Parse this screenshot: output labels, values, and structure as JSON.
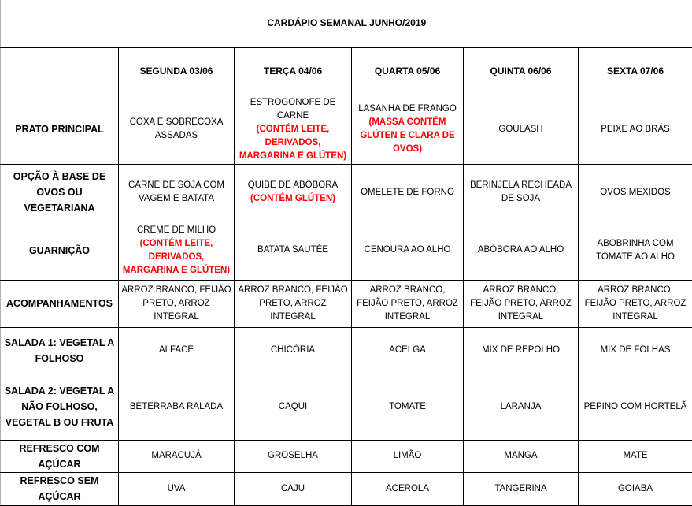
{
  "title": "CARDÁPIO SEMANAL JUNHO/2019",
  "days": [
    "SEGUNDA 03/06",
    "TERÇA 04/06",
    "QUARTA 05/06",
    "QUINTA 06/06",
    "SEXTA 07/06"
  ],
  "rows": [
    {
      "label": "PRATO PRINCIPAL",
      "cells": [
        {
          "text": "COXA E SOBRECOXA ASSADAS"
        },
        {
          "text": "ESTROGONOFE DE CARNE",
          "note": "(CONTÉM LEITE, DERIVADOS, MARGARINA E GLÚTEN)"
        },
        {
          "text": "LASANHA DE FRANGO",
          "note": "(MASSA CONTÉM GLÚTEN E CLARA DE OVOS)"
        },
        {
          "text": "GOULASH"
        },
        {
          "text": "PEIXE AO BRÁS"
        }
      ]
    },
    {
      "label": "OPÇÃO À BASE DE OVOS OU VEGETARIANA",
      "cells": [
        {
          "text": "CARNE DE SOJA COM VAGEM E BATATA"
        },
        {
          "text": "QUIBE DE ABÓBORA",
          "note": "(CONTÉM GLÚTEN)"
        },
        {
          "text": "OMELETE DE FORNO"
        },
        {
          "text": "BERINJELA RECHEADA DE SOJA"
        },
        {
          "text": "OVOS MEXIDOS"
        }
      ]
    },
    {
      "label": "GUARNIÇÃO",
      "cells": [
        {
          "text": "CREME DE MILHO",
          "note": "(CONTÉM LEITE, DERIVADOS, MARGARINA E GLÚTEN)"
        },
        {
          "text": "BATATA SAUTÉE"
        },
        {
          "text": "CENOURA  AO ALHO"
        },
        {
          "text": "ABÓBORA AO ALHO"
        },
        {
          "text": "ABOBRINHA COM TOMATE AO ALHO"
        }
      ]
    },
    {
      "label": "ACOMPANHAMENTOS",
      "cells": [
        {
          "text": "ARROZ BRANCO, FEIJÃO PRETO, ARROZ INTEGRAL"
        },
        {
          "text": "ARROZ BRANCO, FEIJÃO PRETO, ARROZ INTEGRAL"
        },
        {
          "text": "ARROZ BRANCO, FEIJÃO PRETO, ARROZ INTEGRAL"
        },
        {
          "text": "ARROZ BRANCO, FEIJÃO PRETO, ARROZ INTEGRAL"
        },
        {
          "text": "ARROZ BRANCO, FEIJÃO PRETO, ARROZ INTEGRAL"
        }
      ]
    },
    {
      "label": "SALADA 1: VEGETAL A FOLHOSO",
      "cells": [
        {
          "text": "ALFACE"
        },
        {
          "text": "CHICÓRIA"
        },
        {
          "text": "ACELGA"
        },
        {
          "text": "MIX DE REPOLHO"
        },
        {
          "text": "MIX DE FOLHAS"
        }
      ]
    },
    {
      "label": "SALADA 2: VEGETAL A NÃO FOLHOSO, VEGETAL B OU FRUTA",
      "cells": [
        {
          "text": "BETERRABA RALADA"
        },
        {
          "text": "CAQUI"
        },
        {
          "text": "TOMATE"
        },
        {
          "text": "LARANJA"
        },
        {
          "text": "PEPINO COM HORTELÃ"
        }
      ]
    },
    {
      "label": "REFRESCO COM AÇÚCAR",
      "cells": [
        {
          "text": "MARACUJÁ"
        },
        {
          "text": "GROSELHA"
        },
        {
          "text": "LIMÃO"
        },
        {
          "text": "MANGA"
        },
        {
          "text": "MATE"
        }
      ]
    },
    {
      "label": "REFRESCO SEM AÇÚCAR",
      "cells": [
        {
          "text": "UVA"
        },
        {
          "text": "CAJU"
        },
        {
          "text": "ACEROLA"
        },
        {
          "text": "TANGERINA"
        },
        {
          "text": "GOIABA"
        }
      ]
    }
  ],
  "colors": {
    "allergen_note": "#ff0000",
    "border": "#000000"
  }
}
